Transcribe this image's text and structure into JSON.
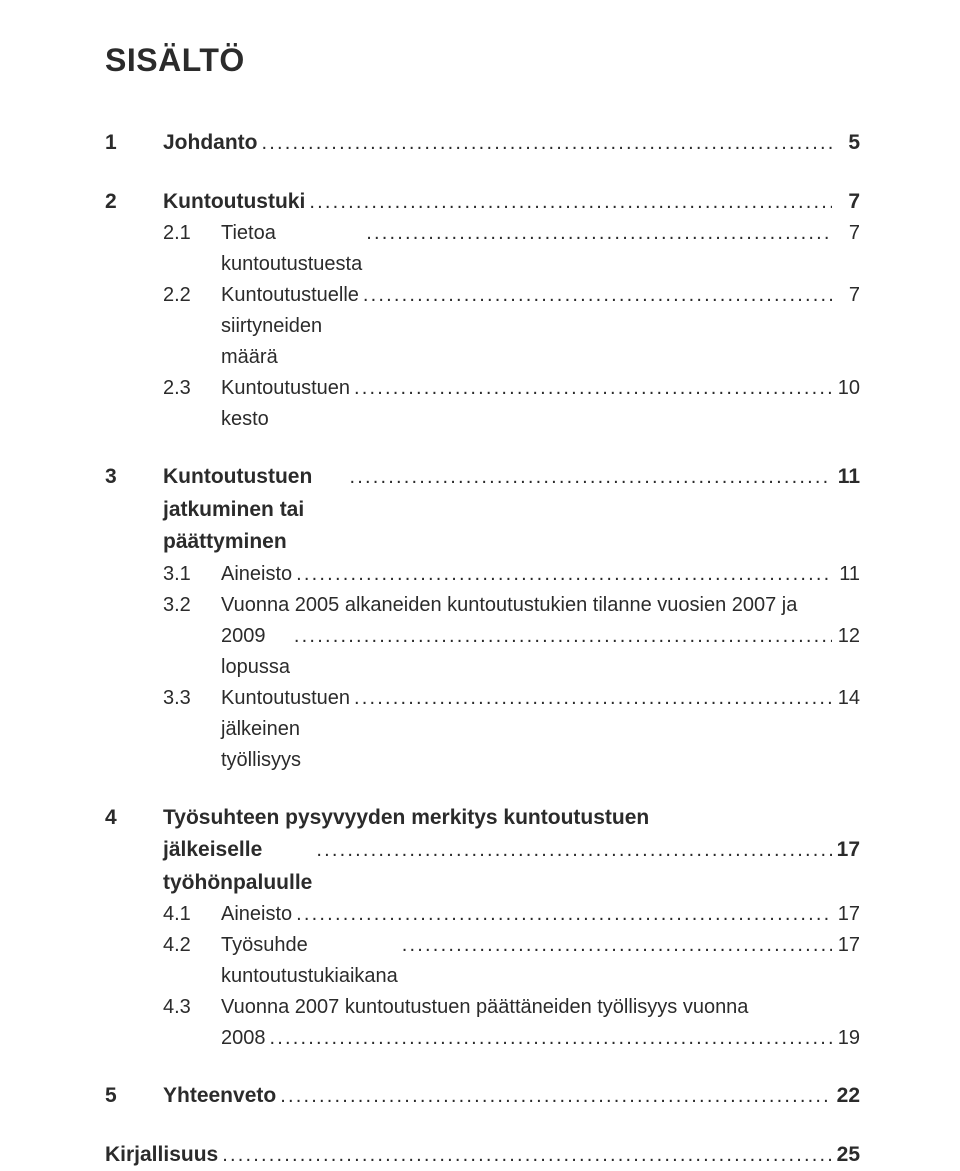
{
  "title": "SISÄLTÖ",
  "dots": "................................................................................................................................................",
  "sections": [
    {
      "num": "1",
      "label": "Johdanto",
      "page": "5",
      "items": []
    },
    {
      "num": "2",
      "label": "Kuntoutustuki",
      "page": "7",
      "items": [
        {
          "subnum": "2.1",
          "label": "Tietoa kuntoutustuesta",
          "page": "7"
        },
        {
          "subnum": "2.2",
          "label": "Kuntoutustuelle siirtyneiden määrä",
          "page": "7"
        },
        {
          "subnum": "2.3",
          "label": "Kuntoutustuen kesto",
          "page": "10"
        }
      ]
    },
    {
      "num": "3",
      "label": "Kuntoutustuen jatkuminen tai päättyminen",
      "page": "11",
      "items": [
        {
          "subnum": "3.1",
          "label": "Aineisto",
          "page": "11"
        },
        {
          "subnum": "3.2",
          "label_line1": "Vuonna 2005 alkaneiden kuntoutustukien tilanne vuosien 2007 ja",
          "label_line2": "2009 lopussa",
          "page": "12",
          "wrap": true
        },
        {
          "subnum": "3.3",
          "label": "Kuntoutustuen jälkeinen työllisyys",
          "page": "14"
        }
      ]
    },
    {
      "num": "4",
      "label_line1": "Työsuhteen pysyvyyden merkitys kuntoutustuen",
      "label_line2": "jälkeiselle työhönpaluulle",
      "page": "17",
      "wrap": true,
      "items": [
        {
          "subnum": "4.1",
          "label": "Aineisto",
          "page": "17"
        },
        {
          "subnum": "4.2",
          "label": "Työsuhde kuntoutustukiaikana",
          "page": "17"
        },
        {
          "subnum": "4.3",
          "label_line1": "Vuonna 2007 kuntoutustuen päättäneiden työllisyys vuonna",
          "label_line2": "2008",
          "page": "19",
          "wrap": true
        }
      ]
    },
    {
      "num": "5",
      "label": "Yhteenveto",
      "page": "22",
      "items": []
    }
  ],
  "tail": {
    "label": "Kirjallisuus",
    "page": "25"
  }
}
